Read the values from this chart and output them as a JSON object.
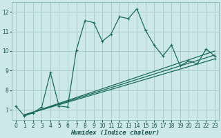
{
  "xlabel": "Humidex (Indice chaleur)",
  "bg_color": "#cce8e8",
  "grid_color": "#aacccc",
  "line_color": "#1a6b5a",
  "xlim": [
    -0.5,
    23.5
  ],
  "ylim": [
    6.5,
    12.5
  ],
  "xticks": [
    0,
    1,
    2,
    3,
    4,
    5,
    6,
    7,
    8,
    9,
    10,
    11,
    12,
    13,
    14,
    15,
    16,
    17,
    18,
    19,
    20,
    21,
    22,
    23
  ],
  "yticks": [
    7,
    8,
    9,
    10,
    11,
    12
  ],
  "series": [
    {
      "x": [
        0,
        1,
        2,
        3,
        4,
        5,
        6,
        7,
        8,
        9,
        10,
        11,
        12,
        13,
        14,
        15,
        16,
        17,
        18,
        19,
        20,
        21,
        22,
        23
      ],
      "y": [
        7.2,
        6.7,
        6.85,
        7.15,
        8.9,
        7.2,
        7.15,
        10.05,
        11.55,
        11.45,
        10.5,
        10.85,
        11.75,
        11.65,
        12.15,
        11.05,
        10.3,
        9.75,
        10.3,
        9.25,
        9.5,
        9.35,
        10.1,
        9.75
      ],
      "marker": true,
      "linewidth": 0.9
    },
    {
      "x": [
        1,
        23
      ],
      "y": [
        6.75,
        9.6
      ],
      "marker": true,
      "linewidth": 0.9
    },
    {
      "x": [
        1,
        23
      ],
      "y": [
        6.75,
        9.8
      ],
      "marker": false,
      "linewidth": 0.9
    },
    {
      "x": [
        1,
        23
      ],
      "y": [
        6.75,
        10.0
      ],
      "marker": false,
      "linewidth": 0.9
    }
  ]
}
